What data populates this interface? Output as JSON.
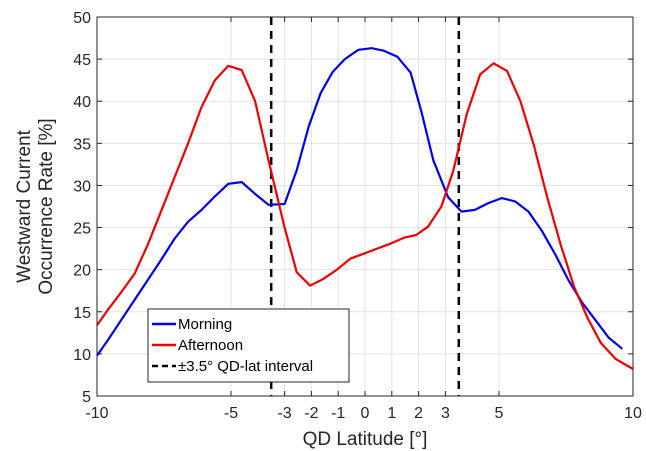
{
  "chart_data": {
    "type": "line",
    "title": "",
    "xlabel": "QD Latitude [°]",
    "ylabel_lines": [
      "Westward Current",
      "Occurrence Rate [%]"
    ],
    "xlim": [
      -10,
      10
    ],
    "ylim": [
      5,
      50
    ],
    "x_ticks": [
      {
        "value": -10,
        "label": "-10"
      },
      {
        "value": -5,
        "label": "-5"
      },
      {
        "value": -3,
        "label": "-3"
      },
      {
        "value": -2,
        "label": "-2"
      },
      {
        "value": -1,
        "label": "-1"
      },
      {
        "value": 0,
        "label": "0"
      },
      {
        "value": 1,
        "label": "1"
      },
      {
        "value": 2,
        "label": "2"
      },
      {
        "value": 3,
        "label": "3"
      },
      {
        "value": 5,
        "label": "5"
      },
      {
        "value": 10,
        "label": "10"
      }
    ],
    "y_ticks": [
      {
        "value": 5,
        "label": "5"
      },
      {
        "value": 10,
        "label": "10"
      },
      {
        "value": 15,
        "label": "15"
      },
      {
        "value": 20,
        "label": "20"
      },
      {
        "value": 25,
        "label": "25"
      },
      {
        "value": 30,
        "label": "30"
      },
      {
        "value": 35,
        "label": "35"
      },
      {
        "value": 40,
        "label": "40"
      },
      {
        "value": 45,
        "label": "45"
      },
      {
        "value": 50,
        "label": "50"
      }
    ],
    "grid": true,
    "legend_position": "bottom-left",
    "series": [
      {
        "name": "Morning",
        "color": "#0000ee",
        "points": [
          [
            -10,
            9.8
          ],
          [
            -9.6,
            11.6
          ],
          [
            -9.1,
            14.0
          ],
          [
            -8.6,
            16.4
          ],
          [
            -8.1,
            18.8
          ],
          [
            -7.6,
            21.2
          ],
          [
            -7.1,
            23.7
          ],
          [
            -6.6,
            25.7
          ],
          [
            -6.1,
            27.1
          ],
          [
            -5.6,
            28.7
          ],
          [
            -5.1,
            30.2
          ],
          [
            -4.6,
            30.4
          ],
          [
            -4.1,
            29.0
          ],
          [
            -3.6,
            27.7
          ],
          [
            -3.0,
            27.8
          ],
          [
            -2.55,
            31.8
          ],
          [
            -2.1,
            37.0
          ],
          [
            -1.65,
            41.0
          ],
          [
            -1.2,
            43.5
          ],
          [
            -0.75,
            45.0
          ],
          [
            -0.25,
            46.1
          ],
          [
            0.25,
            46.3
          ],
          [
            0.7,
            46.0
          ],
          [
            1.2,
            45.3
          ],
          [
            1.7,
            43.4
          ],
          [
            2.1,
            38.8
          ],
          [
            2.55,
            33.0
          ],
          [
            3.1,
            28.6
          ],
          [
            3.6,
            26.9
          ],
          [
            4.1,
            27.1
          ],
          [
            4.6,
            27.9
          ],
          [
            5.1,
            28.5
          ],
          [
            5.6,
            28.1
          ],
          [
            6.1,
            26.9
          ],
          [
            6.6,
            24.6
          ],
          [
            7.1,
            21.8
          ],
          [
            7.6,
            18.7
          ],
          [
            8.1,
            16.1
          ],
          [
            8.6,
            14.0
          ],
          [
            9.1,
            11.9
          ],
          [
            9.6,
            10.6
          ]
        ]
      },
      {
        "name": "Afternoon",
        "color": "#ee0000",
        "points": [
          [
            -10,
            13.4
          ],
          [
            -9.6,
            15.2
          ],
          [
            -9.1,
            17.3
          ],
          [
            -8.6,
            19.5
          ],
          [
            -8.1,
            23.0
          ],
          [
            -7.6,
            27.0
          ],
          [
            -7.1,
            31.0
          ],
          [
            -6.6,
            35.0
          ],
          [
            -6.1,
            39.3
          ],
          [
            -5.6,
            42.5
          ],
          [
            -5.1,
            44.2
          ],
          [
            -4.6,
            43.7
          ],
          [
            -4.1,
            40.0
          ],
          [
            -3.6,
            33.0
          ],
          [
            -3.0,
            25.0
          ],
          [
            -2.55,
            19.7
          ],
          [
            -2.05,
            18.1
          ],
          [
            -1.55,
            18.9
          ],
          [
            -1.05,
            20.0
          ],
          [
            -0.55,
            21.3
          ],
          [
            -0.05,
            21.9
          ],
          [
            0.45,
            22.5
          ],
          [
            0.95,
            23.1
          ],
          [
            1.45,
            23.8
          ],
          [
            1.9,
            24.1
          ],
          [
            2.35,
            25.1
          ],
          [
            2.85,
            27.5
          ],
          [
            3.3,
            31.8
          ],
          [
            3.8,
            38.5
          ],
          [
            4.3,
            43.2
          ],
          [
            4.8,
            44.5
          ],
          [
            5.3,
            43.6
          ],
          [
            5.8,
            40.0
          ],
          [
            6.3,
            34.8
          ],
          [
            6.8,
            28.6
          ],
          [
            7.3,
            23.0
          ],
          [
            7.8,
            18.0
          ],
          [
            8.3,
            14.3
          ],
          [
            8.8,
            11.3
          ],
          [
            9.35,
            9.4
          ],
          [
            10,
            8.2
          ]
        ]
      }
    ],
    "vertical_lines": [
      {
        "name": "±3.5° QD-lat interval",
        "x": -3.5,
        "color": "#000000",
        "style": "dashed"
      },
      {
        "x": 3.5,
        "color": "#000000",
        "style": "dashed"
      }
    ],
    "legend": [
      {
        "label": "Morning",
        "color": "#0000ee",
        "style": "solid"
      },
      {
        "label": "Afternoon",
        "color": "#ee0000",
        "style": "solid"
      },
      {
        "label": "±3.5° QD-lat interval",
        "color": "#000000",
        "style": "dashed"
      }
    ]
  }
}
